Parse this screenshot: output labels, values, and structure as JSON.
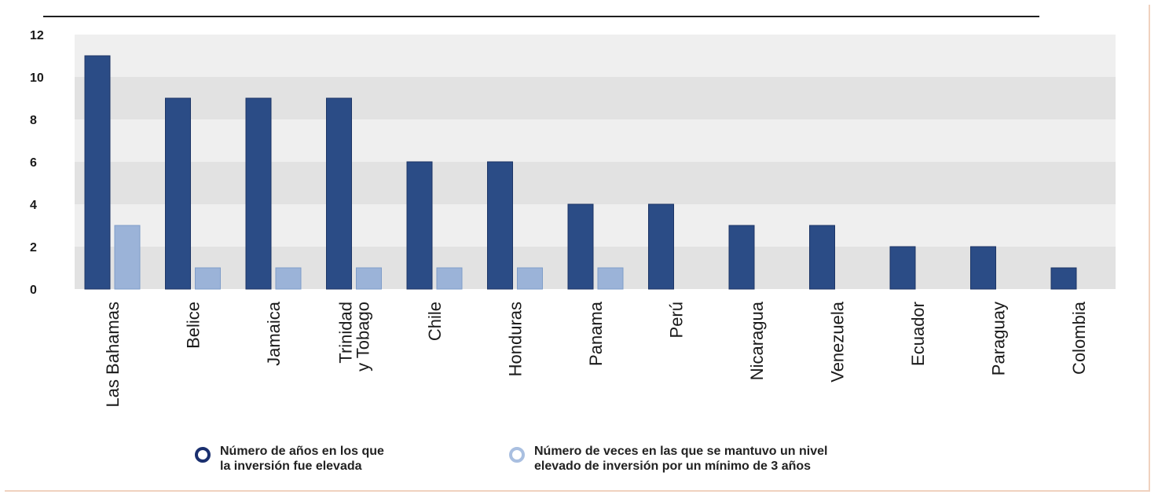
{
  "chart_data": {
    "type": "bar",
    "title": "",
    "xlabel": "",
    "ylabel": "",
    "ylim": [
      0,
      12
    ],
    "yticks": [
      "0",
      "2",
      "4",
      "6",
      "8",
      "10",
      "12"
    ],
    "grid": "horizontal bands",
    "legend_position": "bottom",
    "categories": [
      "Las Bahamas",
      "Belice",
      "Jamaica",
      "Trinidad\ny Tobago",
      "Chile",
      "Honduras",
      "Panama",
      "Perú",
      "Nicaragua",
      "Venezuela",
      "Ecuador",
      "Paraguay",
      "Colombia"
    ],
    "series": [
      {
        "name": "Número de años en los que\nla inversión fue elevada",
        "color": "#2b4c86",
        "values": [
          11,
          9,
          9,
          9,
          6,
          6,
          4,
          4,
          3,
          3,
          2,
          2,
          1
        ]
      },
      {
        "name": "Número de veces en las que se mantuvo un nivel\nelevado de inversión por un mínimo de 3 años",
        "color": "#9bb3d8",
        "values": [
          3,
          1,
          1,
          1,
          1,
          1,
          1,
          0,
          0,
          0,
          0,
          0,
          0
        ]
      }
    ]
  }
}
